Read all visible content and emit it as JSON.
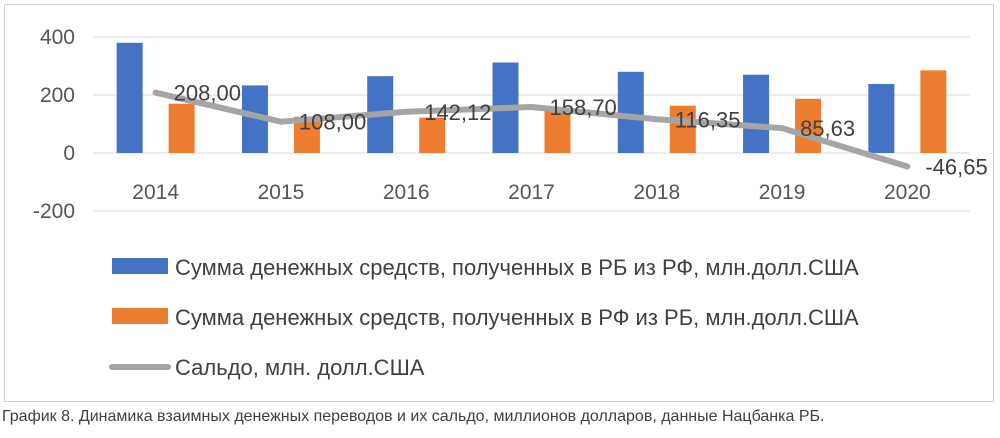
{
  "chart_data": {
    "type": "bar",
    "categories": [
      "2014",
      "2015",
      "2016",
      "2017",
      "2018",
      "2019",
      "2020"
    ],
    "series": [
      {
        "name": "Сумма денежных средств, полученных в РБ из РФ, млн.долл.США",
        "type": "bar",
        "color": "#4472C4",
        "values": [
          380,
          233,
          265,
          312,
          280,
          270,
          238
        ]
      },
      {
        "name": "Сумма денежных средств, полученных в РФ из РБ, млн.долл.США",
        "type": "bar",
        "color": "#ED7D31",
        "values": [
          170,
          125,
          122,
          153,
          163,
          187,
          285
        ]
      },
      {
        "name": "Сальдо, млн. долл.США",
        "type": "line",
        "color": "#A5A5A5",
        "values": [
          208.0,
          108.0,
          142.12,
          158.7,
          116.35,
          85.63,
          -46.65
        ],
        "labels": [
          "208,00",
          "108,00",
          "142,12",
          "158,70",
          "116,35",
          "85,63",
          "-46,65"
        ]
      }
    ],
    "yticks": [
      "400",
      "200",
      "0",
      "-200"
    ],
    "ylim": [
      -200,
      400
    ],
    "grid": true,
    "legend_position": "bottom"
  },
  "caption": "График 8. Динамика взаимных денежных переводов и их сальдо, миллионов долларов, данные Нацбанка РБ."
}
